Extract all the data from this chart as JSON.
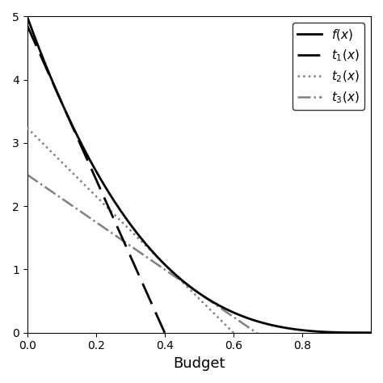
{
  "xlabel": "Budget",
  "xlim": [
    0,
    1.0
  ],
  "ylim": [
    0,
    5
  ],
  "xticks": [
    0,
    0.2,
    0.4,
    0.6,
    0.8
  ],
  "yticks": [
    0,
    1,
    2,
    3,
    4,
    5
  ],
  "f_color": "black",
  "t1_color": "black",
  "t2_color": "gray",
  "t3_color": "gray",
  "t1_a": 0.1,
  "t2_a": 0.4,
  "t3_a": 0.5,
  "n": 3,
  "s": 5,
  "figsize": [
    4.74,
    4.74
  ],
  "dpi": 100,
  "legend_fontsize": 11,
  "xlabel_fontsize": 13
}
